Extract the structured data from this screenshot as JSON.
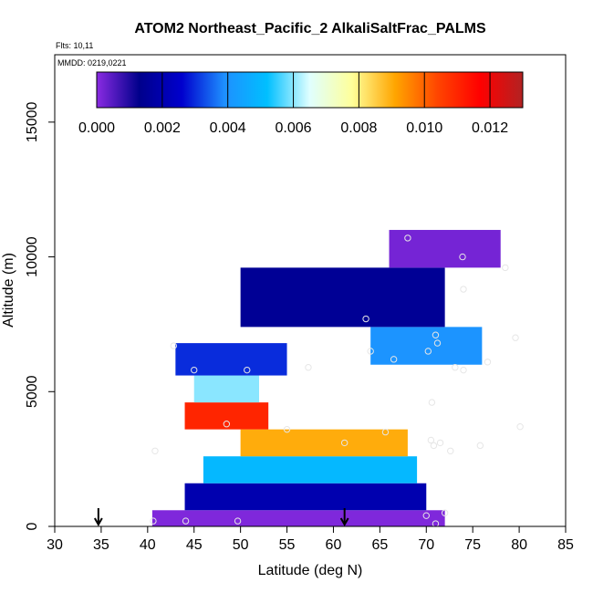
{
  "chart_data": {
    "type": "heatmap",
    "title": "ATOM2 Northeast_Pacific_2 AlkaliSaltFrac_PALMS",
    "flights_label": "Flts: 10,11",
    "date_label": "MMDD: 0219,0221",
    "xlabel": "Latitude (deg N)",
    "ylabel": "Altitude (m)",
    "xlim": [
      30,
      85
    ],
    "ylim": [
      0,
      17500
    ],
    "xticks": [
      30,
      35,
      40,
      45,
      50,
      55,
      60,
      65,
      70,
      75,
      80,
      85
    ],
    "yticks": [
      0,
      5000,
      10000,
      15000
    ],
    "colorbar": {
      "min": 0.0,
      "max": 0.013,
      "ticks": [
        "0.000",
        "0.002",
        "0.004",
        "0.006",
        "0.008",
        "0.010",
        "0.012"
      ],
      "tick_values": [
        0,
        0.002,
        0.004,
        0.006,
        0.008,
        0.01,
        0.012
      ],
      "colors": [
        "#8a2be2",
        "#00008b",
        "#0000cd",
        "#1e90ff",
        "#00bfff",
        "#e0ffff",
        "#ffff99",
        "#ffa500",
        "#ff4500",
        "#ff0000",
        "#b22222"
      ]
    },
    "flight_markers_lat": [
      34.7,
      61.2
    ],
    "sample_points": [
      [
        40.6,
        200
      ],
      [
        44.1,
        200
      ],
      [
        49.7,
        200
      ],
      [
        40.8,
        2800
      ],
      [
        42.8,
        6700
      ],
      [
        45.0,
        5800
      ],
      [
        50.7,
        5800
      ],
      [
        48.5,
        3800
      ],
      [
        55.0,
        3600
      ],
      [
        57.3,
        5900
      ],
      [
        61.2,
        3100
      ],
      [
        63.5,
        7700
      ],
      [
        64.0,
        6500
      ],
      [
        65.6,
        3500
      ],
      [
        66.5,
        6200
      ],
      [
        68.0,
        10700
      ],
      [
        70.2,
        6500
      ],
      [
        70.5,
        3200
      ],
      [
        70.6,
        4600
      ],
      [
        70.8,
        3000
      ],
      [
        71.0,
        7100
      ],
      [
        71.2,
        6800
      ],
      [
        71.5,
        3100
      ],
      [
        72.6,
        2800
      ],
      [
        73.1,
        5900
      ],
      [
        73.9,
        10000
      ],
      [
        74.0,
        8800
      ],
      [
        74.0,
        5800
      ],
      [
        75.8,
        3000
      ],
      [
        76.6,
        6100
      ],
      [
        78.5,
        9600
      ],
      [
        79.6,
        7000
      ],
      [
        80.1,
        3700
      ],
      [
        70.0,
        400
      ],
      [
        71.0,
        100
      ],
      [
        72.0,
        500
      ]
    ],
    "bands": [
      {
        "lat_range": [
          40.5,
          72
        ],
        "alt_range": [
          0,
          600
        ],
        "value": 0.0001
      },
      {
        "lat_range": [
          44,
          70
        ],
        "alt_range": [
          600,
          1600
        ],
        "value": 0.002
      },
      {
        "lat_range": [
          46,
          69
        ],
        "alt_range": [
          1600,
          2600
        ],
        "value": 0.005
      },
      {
        "lat_range": [
          50,
          68
        ],
        "alt_range": [
          2600,
          3600
        ],
        "value": 0.009
      },
      {
        "lat_range": [
          44,
          53
        ],
        "alt_range": [
          3600,
          4600
        ],
        "value": 0.011
      },
      {
        "lat_range": [
          45,
          52
        ],
        "alt_range": [
          4600,
          5600
        ],
        "value": 0.006
      },
      {
        "lat_range": [
          43,
          55
        ],
        "alt_range": [
          5600,
          6800
        ],
        "value": 0.003
      },
      {
        "lat_range": [
          64,
          76
        ],
        "alt_range": [
          6000,
          7400
        ],
        "value": 0.004
      },
      {
        "lat_range": [
          50,
          72
        ],
        "alt_range": [
          7400,
          9600
        ],
        "value": 0.0015
      },
      {
        "lat_range": [
          66,
          78
        ],
        "alt_range": [
          9600,
          11000
        ],
        "value": 0.0002
      }
    ]
  }
}
